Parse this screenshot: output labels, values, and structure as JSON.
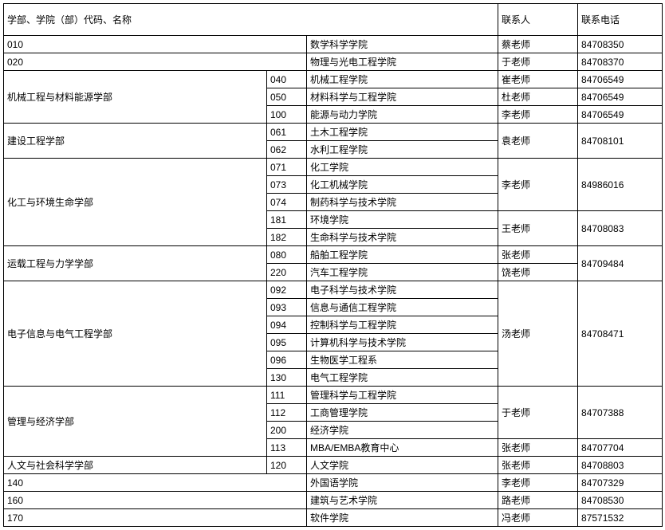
{
  "header": {
    "col1": "学部、学院（部）代码、名称",
    "col4": "联系人",
    "col5": "联系电话"
  },
  "rows": [
    {
      "c1": "010",
      "c3": "数学科学学院",
      "c4": "蔡老师",
      "c5": "84708350",
      "c1span": 2
    },
    {
      "c1": "020",
      "c3": "物理与光电工程学院",
      "c4": "于老师",
      "c5": "84708370",
      "c1span": 2
    },
    {
      "c1": "机械工程与材料能源学部",
      "c2": "040",
      "c3": "机械工程学院",
      "c4": "崔老师",
      "c5": "84706549",
      "c1rows": 3
    },
    {
      "c2": "050",
      "c3": "材料科学与工程学院",
      "c4": "杜老师",
      "c5": "84706549"
    },
    {
      "c2": "100",
      "c3": "能源与动力学院",
      "c4": "李老师",
      "c5": "84706549"
    },
    {
      "c1": "建设工程学部",
      "c2": "061",
      "c3": "土木工程学院",
      "c4": "袁老师",
      "c5": "84708101",
      "c1rows": 2,
      "c4rows": 2,
      "c5rows": 2
    },
    {
      "c2": "062",
      "c3": "水利工程学院"
    },
    {
      "c1": "化工与环境生命学部",
      "c2": "071",
      "c3": "化工学院",
      "c4": "李老师",
      "c5": "84986016",
      "c1rows": 5,
      "c4rows": 3,
      "c5rows": 3
    },
    {
      "c2": "073",
      "c3": "化工机械学院"
    },
    {
      "c2": "074",
      "c3": "制药科学与技术学院"
    },
    {
      "c2": "181",
      "c3": "环境学院",
      "c4": "王老师",
      "c5": "84708083",
      "c4rows": 2,
      "c5rows": 2
    },
    {
      "c2": "182",
      "c3": "生命科学与技术学院"
    },
    {
      "c1": "运载工程与力学学部",
      "c2": "080",
      "c3": "船舶工程学院",
      "c4": "张老师",
      "c5": "84709484",
      "c1rows": 2,
      "c5rows": 2
    },
    {
      "c2": "220",
      "c3": "汽车工程学院",
      "c4": "饶老师"
    },
    {
      "c1": "电子信息与电气工程学部",
      "c2": "092",
      "c3": "电子科学与技术学院",
      "c4": "汤老师",
      "c5": "84708471",
      "c1rows": 6,
      "c4rows": 6,
      "c5rows": 6
    },
    {
      "c2": "093",
      "c3": "信息与通信工程学院"
    },
    {
      "c2": "094",
      "c3": "控制科学与工程学院"
    },
    {
      "c2": "095",
      "c3": "计算机科学与技术学院"
    },
    {
      "c2": "096",
      "c3": "生物医学工程系"
    },
    {
      "c2": "130",
      "c3": "电气工程学院"
    },
    {
      "c1": "管理与经济学部",
      "c2": "111",
      "c3": "管理科学与工程学院",
      "c4": "于老师",
      "c5": "84707388",
      "c1rows": 4,
      "c4rows": 3,
      "c5rows": 3
    },
    {
      "c2": "112",
      "c3": "工商管理学院"
    },
    {
      "c2": "200",
      "c3": "经济学院"
    },
    {
      "c2": "113",
      "c3": "MBA/EMBA教育中心",
      "c4": "张老师",
      "c5": "84707704"
    },
    {
      "c1": "人文与社会科学学部",
      "c2": "120",
      "c3": "人文学院",
      "c4": "张老师",
      "c5": "84708803"
    },
    {
      "c1": "140",
      "c3": "外国语学院",
      "c4": "李老师",
      "c5": "84707329",
      "c1span": 2
    },
    {
      "c1": "160",
      "c3": "建筑与艺术学院",
      "c4": "路老师",
      "c5": "84708530",
      "c1span": 2
    },
    {
      "c1": "170",
      "c3": "软件学院",
      "c4": "冯老师",
      "c5": "87571532",
      "c1span": 2
    }
  ]
}
